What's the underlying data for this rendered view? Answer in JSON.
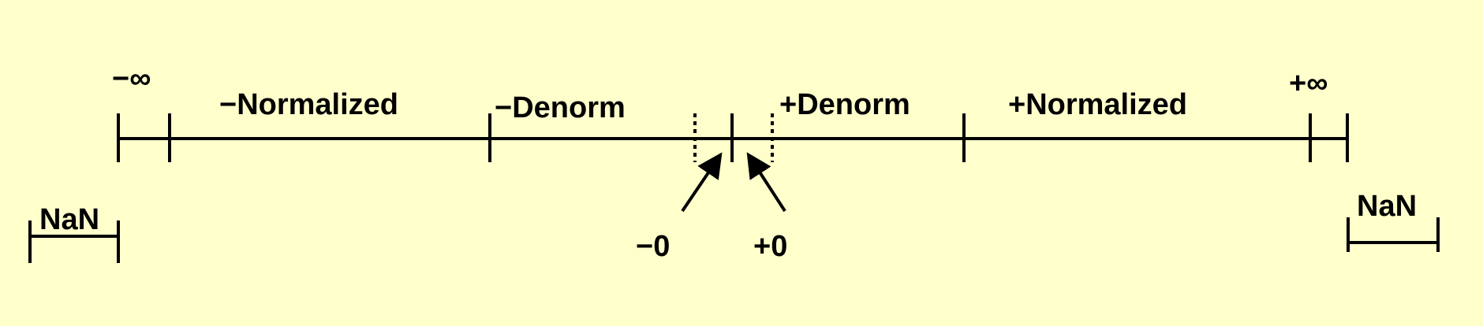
{
  "labels": {
    "neg_infinity": "−∞",
    "pos_infinity": "+∞",
    "neg_normalized": "−Normalized",
    "pos_normalized": "+Normalized",
    "neg_denorm": "−Denorm",
    "pos_denorm": "+Denorm",
    "neg_zero": "−0",
    "pos_zero": "+0",
    "nan_left": "NaN",
    "nan_right": "NaN"
  },
  "colors": {
    "background": "#FFFFCC",
    "ink": "#000000"
  }
}
